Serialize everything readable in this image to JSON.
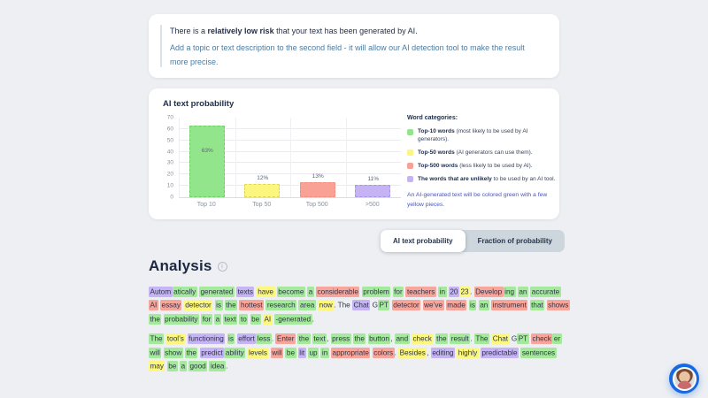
{
  "risk_card": {
    "headline_prefix": "There is a ",
    "headline_bold": "relatively low risk",
    "headline_suffix": " that your text has been generated by AI.",
    "subtext": "Add a topic or text description to the second field - it will allow our AI detection tool to make the result more precise."
  },
  "chart_card": {
    "title": "AI text probability",
    "legend_title": "Word categories:",
    "legend_items": [
      {
        "color": "#92e58b",
        "bold": "Top-10 words",
        "text": " (most likely to be used by AI generators)."
      },
      {
        "color": "#fbf67e",
        "bold": "Top-50 words",
        "text": " (AI generators can use them)."
      },
      {
        "color": "#f8a194",
        "bold": "Top-500 words",
        "text": " (less likely to be used by AI)."
      },
      {
        "color": "#c5b3f3",
        "bold": "The words that are unlikely",
        "text": " to be used by an AI tool."
      }
    ],
    "note": "An AI-generated text will be colored green with a few yellow pieces."
  },
  "chart_data": {
    "type": "bar",
    "title": "AI text probability",
    "categories": [
      "Top 10",
      "Top 50",
      "Top 500",
      ">500"
    ],
    "values": [
      63,
      12,
      13,
      11
    ],
    "labels": [
      "63%",
      "12%",
      "13%",
      "11%"
    ],
    "colors": [
      "#92e58b",
      "#fbf67e",
      "#f8a194",
      "#c5b3f3"
    ],
    "border_colors": [
      "#6fcd67",
      "#ddd65b",
      "#ef8d7f",
      "#a593e6"
    ],
    "ylim": [
      0,
      70
    ],
    "yticks": [
      0,
      10,
      20,
      30,
      40,
      50,
      60,
      70
    ],
    "grid": true,
    "xlabel": "",
    "ylabel": "",
    "legend_position": "right"
  },
  "tabs": [
    {
      "label": "AI text probability",
      "active": true
    },
    {
      "label": "Fraction of probability",
      "active": false
    }
  ],
  "icons": {
    "info": "i"
  },
  "highlight_colors": {
    "g": "#a5e99c",
    "y": "#fdf77d",
    "r": "#f8a59b",
    "p": "#c6b4f4",
    "n": "transparent"
  },
  "analysis": {
    "title": "Analysis",
    "paragraphs": [
      [
        [
          "Autom",
          "p"
        ],
        [
          "atically",
          "g",
          1
        ],
        [
          "generated",
          "g"
        ],
        [
          "texts",
          "p"
        ],
        [
          "have",
          "y"
        ],
        [
          "become",
          "g"
        ],
        [
          "a",
          "g"
        ],
        [
          "considerable",
          "r"
        ],
        [
          "problem",
          "g"
        ],
        [
          "for",
          "g"
        ],
        [
          "teachers",
          "r"
        ],
        [
          "in",
          "g"
        ],
        [
          "20",
          "p"
        ],
        [
          "23",
          "y",
          1
        ],
        [
          ".",
          "n",
          1
        ],
        [
          "Develop",
          "r"
        ],
        [
          "ing",
          "g",
          1
        ],
        [
          "an",
          "g"
        ],
        [
          "accurate",
          "g"
        ],
        [
          "AI",
          "r"
        ],
        [
          "essay",
          "r"
        ],
        [
          "detector",
          "y"
        ],
        [
          "is",
          "g"
        ],
        [
          "the",
          "g"
        ],
        [
          "hottest",
          "r"
        ],
        [
          "research",
          "g"
        ],
        [
          "area",
          "g"
        ],
        [
          "now",
          "y"
        ],
        [
          ".",
          "n",
          1
        ],
        [
          "The",
          "n"
        ],
        [
          "Chat",
          "p"
        ],
        [
          "G",
          "n"
        ],
        [
          "PT",
          "g",
          1
        ],
        [
          "detector",
          "r"
        ],
        [
          "we’ve",
          "r"
        ],
        [
          "made",
          "r"
        ],
        [
          "is",
          "g"
        ],
        [
          "an",
          "g"
        ],
        [
          "instrument",
          "r"
        ],
        [
          "that",
          "g"
        ],
        [
          "shows",
          "r"
        ],
        [
          "the",
          "g"
        ],
        [
          "probability",
          "g"
        ],
        [
          "for",
          "g"
        ],
        [
          "a",
          "g"
        ],
        [
          "text",
          "g"
        ],
        [
          "to",
          "g"
        ],
        [
          "be",
          "g"
        ],
        [
          "AI",
          "y"
        ],
        [
          "-generated",
          "g"
        ],
        [
          ".",
          "n",
          1
        ]
      ],
      [
        [
          "The",
          "g"
        ],
        [
          "tool’s",
          "y"
        ],
        [
          "functioning",
          "p"
        ],
        [
          "is",
          "g"
        ],
        [
          "effort",
          "p"
        ],
        [
          "less",
          "g",
          1
        ],
        [
          ".",
          "n",
          1
        ],
        [
          "Enter",
          "r"
        ],
        [
          "the",
          "g"
        ],
        [
          "text",
          "g"
        ],
        [
          ",",
          "n",
          1
        ],
        [
          "press",
          "g"
        ],
        [
          "the",
          "g"
        ],
        [
          "button",
          "g"
        ],
        [
          ",",
          "n",
          1
        ],
        [
          "and",
          "g"
        ],
        [
          "check",
          "y"
        ],
        [
          "the",
          "g"
        ],
        [
          "result",
          "g"
        ],
        [
          ".",
          "n",
          1
        ],
        [
          "The",
          "g"
        ],
        [
          "Chat",
          "y"
        ],
        [
          "G",
          "n"
        ],
        [
          "PT",
          "g",
          1
        ],
        [
          "check",
          "r"
        ],
        [
          "er",
          "g",
          1
        ],
        [
          "will",
          "g"
        ],
        [
          "show",
          "g"
        ],
        [
          "the",
          "g"
        ],
        [
          "predict",
          "p"
        ],
        [
          "ability",
          "g",
          1
        ],
        [
          "levels",
          "y"
        ],
        [
          "will",
          "r"
        ],
        [
          "be",
          "g"
        ],
        [
          "lit",
          "p"
        ],
        [
          "up",
          "g"
        ],
        [
          "in",
          "g"
        ],
        [
          "appropriate",
          "r"
        ],
        [
          "colors",
          "r"
        ],
        [
          ".",
          "n",
          1
        ],
        [
          "Besides",
          "y"
        ],
        [
          ",",
          "n",
          1
        ],
        [
          "editing",
          "p"
        ],
        [
          "highly",
          "y"
        ],
        [
          "predictable",
          "p"
        ],
        [
          "sentences",
          "g"
        ],
        [
          "may",
          "y"
        ],
        [
          "be",
          "g"
        ],
        [
          "a",
          "g"
        ],
        [
          "good",
          "g"
        ],
        [
          "idea",
          "g"
        ],
        [
          ".",
          "n",
          1
        ]
      ]
    ]
  }
}
